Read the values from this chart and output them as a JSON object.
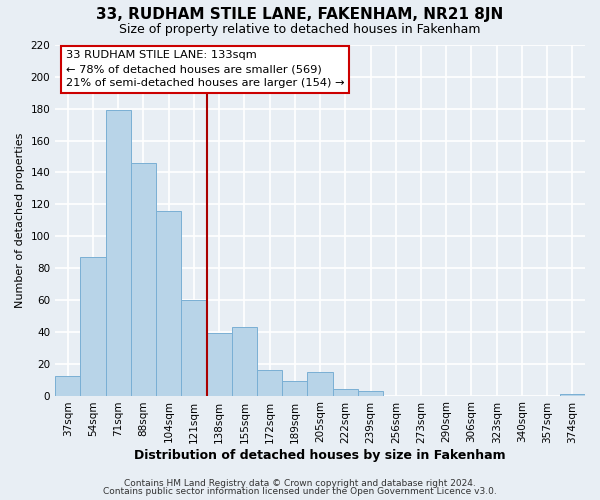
{
  "title": "33, RUDHAM STILE LANE, FAKENHAM, NR21 8JN",
  "subtitle": "Size of property relative to detached houses in Fakenham",
  "xlabel": "Distribution of detached houses by size in Fakenham",
  "ylabel": "Number of detached properties",
  "bar_labels": [
    "37sqm",
    "54sqm",
    "71sqm",
    "88sqm",
    "104sqm",
    "121sqm",
    "138sqm",
    "155sqm",
    "172sqm",
    "189sqm",
    "205sqm",
    "222sqm",
    "239sqm",
    "256sqm",
    "273sqm",
    "290sqm",
    "306sqm",
    "323sqm",
    "340sqm",
    "357sqm",
    "374sqm"
  ],
  "bar_values": [
    12,
    87,
    179,
    146,
    116,
    60,
    39,
    43,
    16,
    9,
    15,
    4,
    3,
    0,
    0,
    0,
    0,
    0,
    0,
    0,
    1
  ],
  "bar_color": "#b8d4e8",
  "bar_edge_color": "#7aafd4",
  "vline_x": 6.0,
  "vline_color": "#aa0000",
  "ylim": [
    0,
    220
  ],
  "yticks": [
    0,
    20,
    40,
    60,
    80,
    100,
    120,
    140,
    160,
    180,
    200,
    220
  ],
  "annotation_title": "33 RUDHAM STILE LANE: 133sqm",
  "annotation_line1": "← 78% of detached houses are smaller (569)",
  "annotation_line2": "21% of semi-detached houses are larger (154) →",
  "annotation_box_facecolor": "#ffffff",
  "annotation_box_edgecolor": "#cc0000",
  "footer1": "Contains HM Land Registry data © Crown copyright and database right 2024.",
  "footer2": "Contains public sector information licensed under the Open Government Licence v3.0.",
  "fig_facecolor": "#e8eef4",
  "plot_facecolor": "#e8eef4",
  "grid_color": "#ffffff",
  "title_fontsize": 11,
  "subtitle_fontsize": 9,
  "ylabel_fontsize": 8,
  "xlabel_fontsize": 9,
  "tick_fontsize": 7.5,
  "footer_fontsize": 6.5
}
